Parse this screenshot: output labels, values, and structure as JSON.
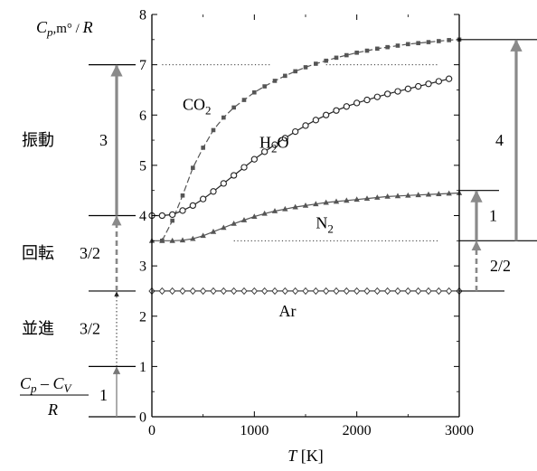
{
  "chart_data": {
    "type": "line",
    "ylabel": {
      "main": "C",
      "sub": "p",
      "rest": ",m° / ",
      "end": "R"
    },
    "xlabel": {
      "var": "T",
      "unit": " [K]"
    },
    "xlim": [
      0,
      3000
    ],
    "ylim": [
      0,
      8
    ],
    "x_ticks": [
      0,
      1000,
      2000,
      3000
    ],
    "y_ticks": [
      0,
      1,
      2,
      3,
      4,
      5,
      6,
      7,
      8
    ],
    "grid": false,
    "series": [
      {
        "name": "CO2",
        "marker": "square",
        "color": "#555555",
        "x": [
          100,
          200,
          300,
          400,
          500,
          600,
          700,
          800,
          900,
          1000,
          1100,
          1200,
          1300,
          1400,
          1500,
          1600,
          1700,
          1800,
          1900,
          2000,
          2100,
          2200,
          2300,
          2400,
          2500,
          2600,
          2700,
          2800,
          2900,
          3000
        ],
        "y": [
          3.5,
          3.9,
          4.4,
          4.95,
          5.35,
          5.7,
          5.95,
          6.15,
          6.3,
          6.45,
          6.57,
          6.68,
          6.78,
          6.87,
          6.95,
          7.02,
          7.08,
          7.14,
          7.19,
          7.24,
          7.28,
          7.32,
          7.35,
          7.38,
          7.41,
          7.43,
          7.45,
          7.47,
          7.49,
          7.5
        ]
      },
      {
        "name": "H2O",
        "marker": "circle",
        "color": "#222222",
        "x": [
          0,
          100,
          200,
          300,
          400,
          500,
          600,
          700,
          800,
          900,
          1000,
          1100,
          1200,
          1300,
          1400,
          1500,
          1600,
          1700,
          1800,
          1900,
          2000,
          2100,
          2200,
          2300,
          2400,
          2500,
          2600,
          2700,
          2800,
          2900
        ],
        "y": [
          4.0,
          4.0,
          4.02,
          4.1,
          4.2,
          4.33,
          4.48,
          4.64,
          4.8,
          4.96,
          5.12,
          5.27,
          5.41,
          5.54,
          5.67,
          5.79,
          5.9,
          6.0,
          6.09,
          6.17,
          6.24,
          6.3,
          6.36,
          6.42,
          6.47,
          6.52,
          6.57,
          6.62,
          6.67,
          6.72
        ]
      },
      {
        "name": "N2",
        "marker": "triangle",
        "color": "#555555",
        "x": [
          0,
          100,
          200,
          300,
          400,
          500,
          600,
          700,
          800,
          900,
          1000,
          1100,
          1200,
          1300,
          1400,
          1500,
          1600,
          1700,
          1800,
          1900,
          2000,
          2100,
          2200,
          2300,
          2400,
          2500,
          2600,
          2700,
          2800,
          2900,
          3000
        ],
        "y": [
          3.5,
          3.5,
          3.5,
          3.51,
          3.54,
          3.6,
          3.68,
          3.76,
          3.84,
          3.91,
          3.98,
          4.04,
          4.09,
          4.13,
          4.17,
          4.2,
          4.23,
          4.26,
          4.28,
          4.3,
          4.32,
          4.34,
          4.36,
          4.38,
          4.39,
          4.4,
          4.41,
          4.42,
          4.43,
          4.44,
          4.45
        ]
      },
      {
        "name": "Ar",
        "marker": "diamond",
        "color": "#444444",
        "x": [
          0,
          100,
          200,
          300,
          400,
          500,
          600,
          700,
          800,
          900,
          1000,
          1100,
          1200,
          1300,
          1400,
          1500,
          1600,
          1700,
          1800,
          1900,
          2000,
          2100,
          2200,
          2300,
          2400,
          2500,
          2600,
          2700,
          2800,
          2900,
          3000
        ],
        "y": [
          2.5,
          2.5,
          2.5,
          2.5,
          2.5,
          2.5,
          2.5,
          2.5,
          2.5,
          2.5,
          2.5,
          2.5,
          2.5,
          2.5,
          2.5,
          2.5,
          2.5,
          2.5,
          2.5,
          2.5,
          2.5,
          2.5,
          2.5,
          2.5,
          2.5,
          2.5,
          2.5,
          2.5,
          2.5,
          2.5,
          2.5
        ]
      }
    ],
    "series_labels": [
      {
        "series": "CO2",
        "base": "CO",
        "sub": "2",
        "x": 300,
        "y": 6.1
      },
      {
        "series": "H2O",
        "base": "H",
        "sub": "2",
        "rest": "O",
        "x": 1050,
        "y": 5.35
      },
      {
        "series": "N2",
        "base": "N",
        "sub": "2",
        "x": 1600,
        "y": 3.75
      },
      {
        "series": "Ar",
        "base": "Ar",
        "x": 1240,
        "y": 2.0
      }
    ],
    "reference_lines": [
      {
        "y": 7.0,
        "x_from": 100,
        "x_to": 2800,
        "gap_from": 1150,
        "gap_to": 1700,
        "style": "dotted"
      },
      {
        "y": 3.5,
        "x_from": 800,
        "x_to": 2800,
        "style": "dotted"
      }
    ],
    "left_ladder": {
      "levels": [
        1,
        2.5,
        4,
        7
      ],
      "segments": [
        {
          "from": 0,
          "to": 1,
          "style": "solid",
          "value": "1",
          "desc_main": "C",
          "desc_sub": "p",
          "desc_mid": " – ",
          "desc_main2": "C",
          "desc_sub2": "V",
          "desc_den": "R"
        },
        {
          "from": 1,
          "to": 2.5,
          "style": "dotted",
          "category": "並進",
          "value": "3/2"
        },
        {
          "from": 2.5,
          "to": 4,
          "style": "dashed",
          "category": "回転",
          "value": "3/2"
        },
        {
          "from": 4,
          "to": 7,
          "style": "solid",
          "category": "振動",
          "value": "3"
        }
      ]
    },
    "right_ladder": {
      "levels": [
        2.5,
        3.5,
        4.5,
        7.5
      ],
      "segments": [
        {
          "from": 2.5,
          "to": 3.5,
          "style": "dashed",
          "value": "2/2"
        },
        {
          "from": 3.5,
          "to": 4.5,
          "style": "solid",
          "value": "1"
        },
        {
          "from": 3.5,
          "to": 7.5,
          "style": "solid",
          "value": "4"
        }
      ]
    }
  }
}
